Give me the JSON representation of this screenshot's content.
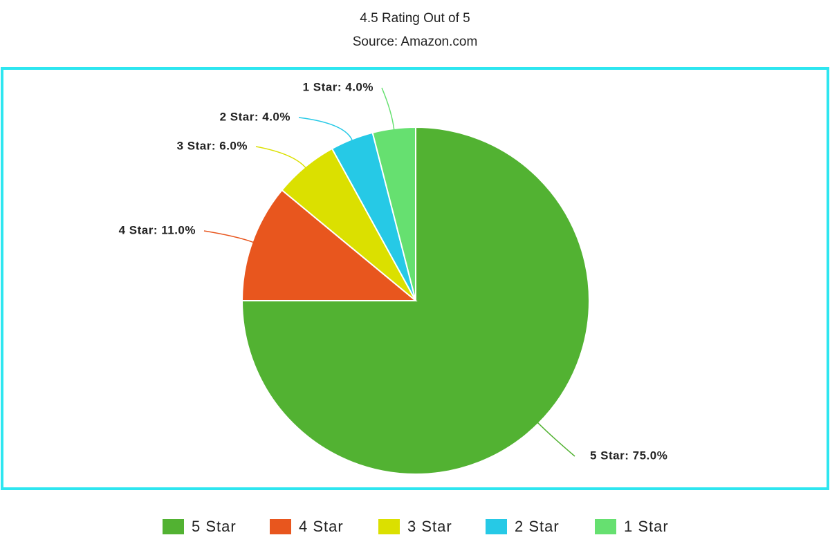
{
  "chart_data": {
    "type": "pie",
    "title": "4.5 Rating Out of 5",
    "subtitle": "Source: Amazon.com",
    "categories": [
      "5 Star",
      "4 Star",
      "3 Star",
      "2 Star",
      "1 Star"
    ],
    "values": [
      75,
      11,
      6,
      4,
      4
    ],
    "value_labels": [
      "5 Star: 75.0%",
      "4 Star: 11.0%",
      "3 Star: 6.0%",
      "2 Star: 4.0%",
      "1 Star: 4.0%"
    ],
    "colors": [
      "#52b232",
      "#e8561e",
      "#dbe000",
      "#26c9e6",
      "#66e070"
    ],
    "legend": "bottom"
  }
}
